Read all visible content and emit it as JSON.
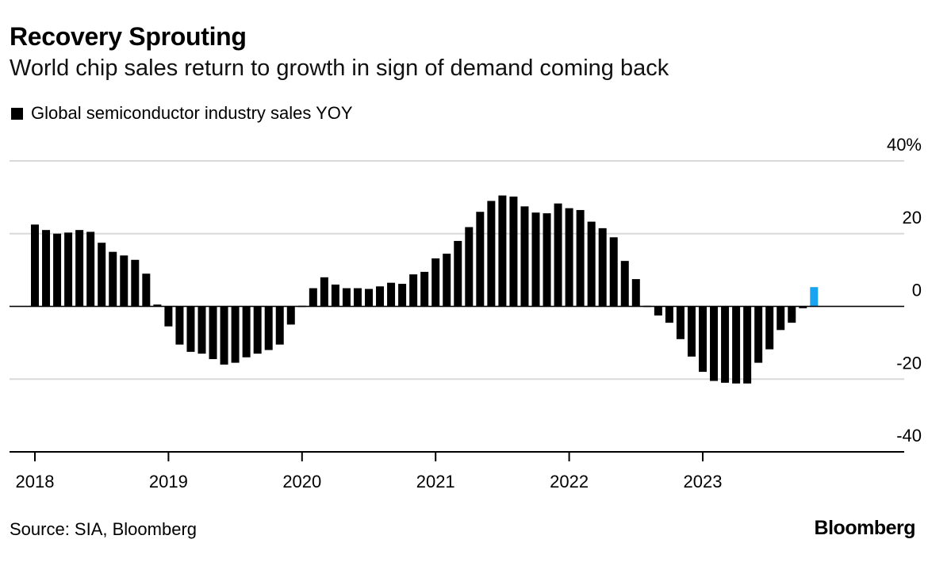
{
  "header": {
    "title": "Recovery Sprouting",
    "subtitle": "World chip sales return to growth in sign of demand coming back"
  },
  "footer": {
    "source": "Source: SIA, Bloomberg",
    "brand": "Bloomberg"
  },
  "colors": {
    "bar": "#000000",
    "highlight": "#1aa3f0",
    "grid": "#d9d9d9",
    "axis": "#000000"
  },
  "chart_data": {
    "type": "bar",
    "legend": [
      "Global semiconductor industry sales YOY"
    ],
    "legend_position": "top-left",
    "y_axis_position": "right",
    "ylim": [
      -40,
      40
    ],
    "y_ticks": [
      "40%",
      "20",
      "0",
      "-20",
      "-40"
    ],
    "y_tick_values": [
      40,
      20,
      0,
      -20,
      -40
    ],
    "x_tick_labels": [
      "2018",
      "2019",
      "2020",
      "2021",
      "2022",
      "2023"
    ],
    "grid": true,
    "x": [
      "2018-01",
      "2018-02",
      "2018-03",
      "2018-04",
      "2018-05",
      "2018-06",
      "2018-07",
      "2018-08",
      "2018-09",
      "2018-10",
      "2018-11",
      "2018-12",
      "2019-01",
      "2019-02",
      "2019-03",
      "2019-04",
      "2019-05",
      "2019-06",
      "2019-07",
      "2019-08",
      "2019-09",
      "2019-10",
      "2019-11",
      "2019-12",
      "2020-01",
      "2020-02",
      "2020-03",
      "2020-04",
      "2020-05",
      "2020-06",
      "2020-07",
      "2020-08",
      "2020-09",
      "2020-10",
      "2020-11",
      "2020-12",
      "2021-01",
      "2021-02",
      "2021-03",
      "2021-04",
      "2021-05",
      "2021-06",
      "2021-07",
      "2021-08",
      "2021-09",
      "2021-10",
      "2021-11",
      "2021-12",
      "2022-01",
      "2022-02",
      "2022-03",
      "2022-04",
      "2022-05",
      "2022-06",
      "2022-07",
      "2022-08",
      "2022-09",
      "2022-10",
      "2022-11",
      "2022-12",
      "2023-01",
      "2023-02",
      "2023-03",
      "2023-04",
      "2023-05",
      "2023-06",
      "2023-07",
      "2023-08",
      "2023-09",
      "2023-10",
      "2023-11",
      "2023-12"
    ],
    "series": [
      {
        "name": "Global semiconductor industry sales YOY",
        "values": [
          22.5,
          21.0,
          20.0,
          20.3,
          21.0,
          20.5,
          17.5,
          15.0,
          14.0,
          12.8,
          9.0,
          0.5,
          -5.5,
          -10.5,
          -12.5,
          -13.0,
          -14.5,
          -16.0,
          -15.5,
          -14.0,
          -13.0,
          -12.0,
          -10.5,
          -5.0,
          0.0,
          5.0,
          8.0,
          6.0,
          5.0,
          5.0,
          4.8,
          5.5,
          6.5,
          6.2,
          8.8,
          9.5,
          13.2,
          14.5,
          18.0,
          21.8,
          26.0,
          29.0,
          30.5,
          30.2,
          27.5,
          25.8,
          25.6,
          28.3,
          27.0,
          26.5,
          23.3,
          21.5,
          19.0,
          12.5,
          7.5,
          0.0,
          -2.5,
          -4.5,
          -9.0,
          -13.8,
          -18.0,
          -20.5,
          -21.0,
          -21.2,
          -21.2,
          -15.5,
          -11.8,
          -6.5,
          -4.5,
          -0.5,
          5.3,
          null
        ],
        "highlight_index": 70
      }
    ]
  }
}
